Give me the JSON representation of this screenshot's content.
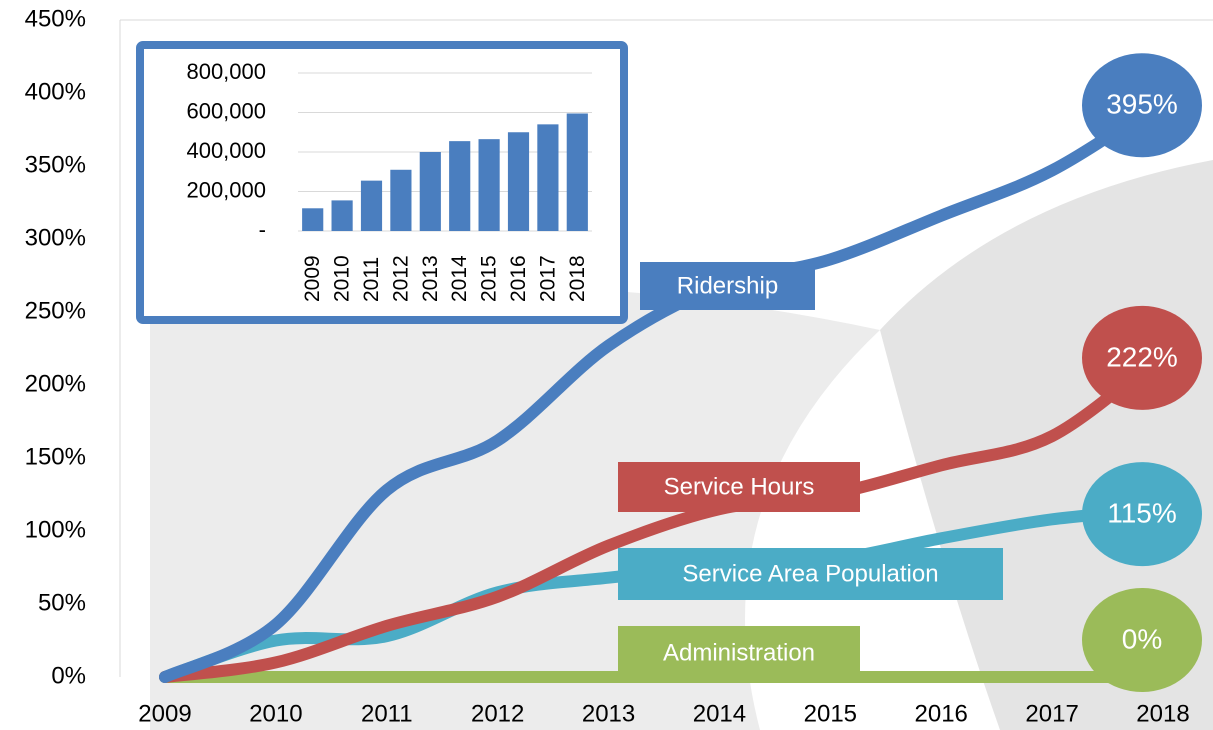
{
  "chart_data": [
    {
      "type": "line",
      "categories": [
        "2009",
        "2010",
        "2011",
        "2012",
        "2013",
        "2014",
        "2015",
        "2016",
        "2017",
        "2018"
      ],
      "ylim": [
        0,
        450
      ],
      "yticks": [
        {
          "value": 0,
          "label": "0%"
        },
        {
          "value": 50,
          "label": "50%"
        },
        {
          "value": 100,
          "label": "100%"
        },
        {
          "value": 150,
          "label": "150%"
        },
        {
          "value": 200,
          "label": "200%"
        },
        {
          "value": 250,
          "label": "250%"
        },
        {
          "value": 300,
          "label": "300%"
        },
        {
          "value": 350,
          "label": "350%"
        },
        {
          "value": 400,
          "label": "400%"
        },
        {
          "value": 450,
          "label": "450%"
        }
      ],
      "series": [
        {
          "name": "Ridership",
          "color": "#4a7ebf",
          "values": [
            0,
            36,
            128,
            162,
            227,
            268,
            286,
            316,
            347,
            395
          ],
          "value_labels": [
            null,
            null,
            null,
            null,
            null,
            null,
            null,
            null,
            null,
            "395%"
          ]
        },
        {
          "name": "Service Hours",
          "color": "#c0504d",
          "values": [
            0,
            10,
            35,
            55,
            90,
            115,
            125,
            145,
            165,
            222
          ],
          "value_labels": [
            null,
            null,
            null,
            null,
            null,
            null,
            null,
            null,
            null,
            "222%"
          ]
        },
        {
          "name": "Service Area Population",
          "color": "#4bacc6",
          "values": [
            0,
            25,
            28,
            58,
            68,
            75,
            80,
            95,
            108,
            115
          ],
          "value_labels": [
            null,
            null,
            null,
            null,
            null,
            null,
            null,
            null,
            null,
            "115%"
          ]
        },
        {
          "name": "Administration",
          "color": "#9bbb59",
          "values": [
            0,
            0,
            0,
            0,
            0,
            0,
            0,
            0,
            0,
            0
          ],
          "value_labels": [
            null,
            null,
            null,
            null,
            null,
            null,
            null,
            null,
            null,
            "0%"
          ]
        }
      ]
    },
    {
      "type": "bar",
      "categories": [
        "2009",
        "2010",
        "2011",
        "2012",
        "2013",
        "2014",
        "2015",
        "2016",
        "2017",
        "2018"
      ],
      "values": [
        115000,
        155000,
        255000,
        310000,
        400000,
        455000,
        465000,
        500000,
        540000,
        595000
      ],
      "color": "#4a7ebf",
      "ylim": [
        0,
        800000
      ],
      "yticks": [
        {
          "value": 0,
          "label": "-"
        },
        {
          "value": 200000,
          "label": "200,000"
        },
        {
          "value": 400000,
          "label": "400,000"
        },
        {
          "value": 600000,
          "label": "600,000"
        },
        {
          "value": 800000,
          "label": "800,000"
        }
      ],
      "grid": true
    }
  ]
}
